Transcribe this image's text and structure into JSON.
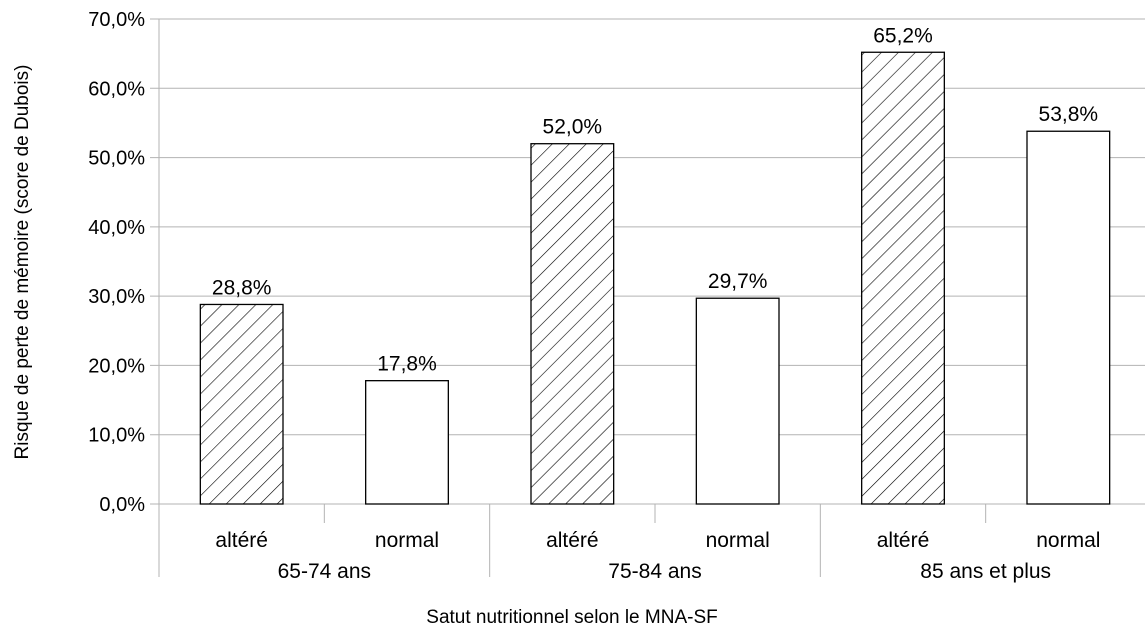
{
  "chart_data": {
    "type": "bar",
    "title": "",
    "xlabel": "Satut nutritionnel selon le MNA-SF",
    "ylabel": "Risque de perte de mémoire (score de Dubois)",
    "ylim": [
      0,
      70
    ],
    "y_ticks": [
      "0,0%",
      "10,0%",
      "20,0%",
      "30,0%",
      "40,0%",
      "50,0%",
      "60,0%",
      "70,0%"
    ],
    "grid": true,
    "legend": "none",
    "groups": [
      {
        "label": "65-74 ans",
        "bars": [
          {
            "label": "altéré",
            "value": 28.8,
            "value_label": "28,8%",
            "pattern": "hatch"
          },
          {
            "label": "normal",
            "value": 17.8,
            "value_label": "17,8%",
            "pattern": "plain"
          }
        ]
      },
      {
        "label": "75-84 ans",
        "bars": [
          {
            "label": "altéré",
            "value": 52.0,
            "value_label": "52,0%",
            "pattern": "hatch"
          },
          {
            "label": "normal",
            "value": 29.7,
            "value_label": "29,7%",
            "pattern": "plain"
          }
        ]
      },
      {
        "label": "85 ans et plus",
        "bars": [
          {
            "label": "altéré",
            "value": 65.2,
            "value_label": "65,2%",
            "pattern": "hatch"
          },
          {
            "label": "normal",
            "value": 53.8,
            "value_label": "53,8%",
            "pattern": "plain"
          }
        ]
      }
    ],
    "colors": {
      "grid": "#b3b3b3",
      "bar_fill": "#ffffff",
      "bar_stroke": "#000000",
      "axis": "#b3b3b3"
    }
  }
}
